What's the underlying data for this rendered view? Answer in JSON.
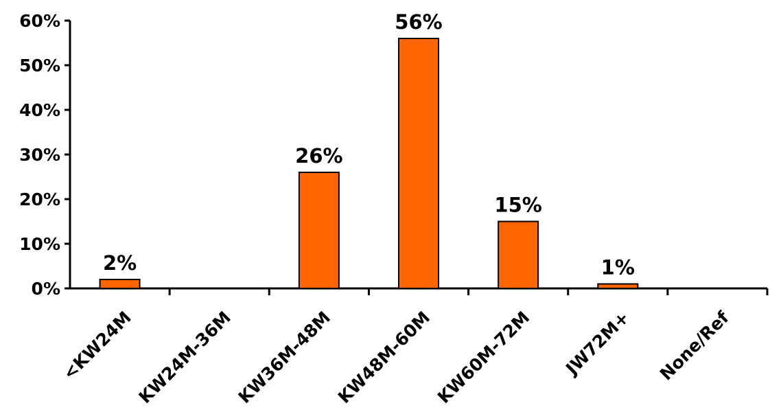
{
  "chart_data": {
    "type": "bar",
    "categories": [
      "<KW24M",
      "KW24M-36M",
      "KW36M-48M",
      "KW48M-60M",
      "KW60M-72M",
      "JW72M+",
      "None/Ref"
    ],
    "values": [
      2,
      0,
      26,
      56,
      15,
      1,
      0
    ],
    "data_labels": [
      "2%",
      "",
      "26%",
      "56%",
      "15%",
      "1%",
      ""
    ],
    "title": "",
    "xlabel": "",
    "ylabel": "",
    "ylim": [
      0,
      60
    ],
    "yticks": [
      0,
      10,
      20,
      30,
      40,
      50,
      60
    ],
    "ytick_labels": [
      "0%",
      "10%",
      "20%",
      "30%",
      "40%",
      "50%",
      "60%"
    ],
    "grid": false,
    "legend": "none",
    "bar_color": "#FF6600",
    "bar_edge_color": "#000000"
  }
}
